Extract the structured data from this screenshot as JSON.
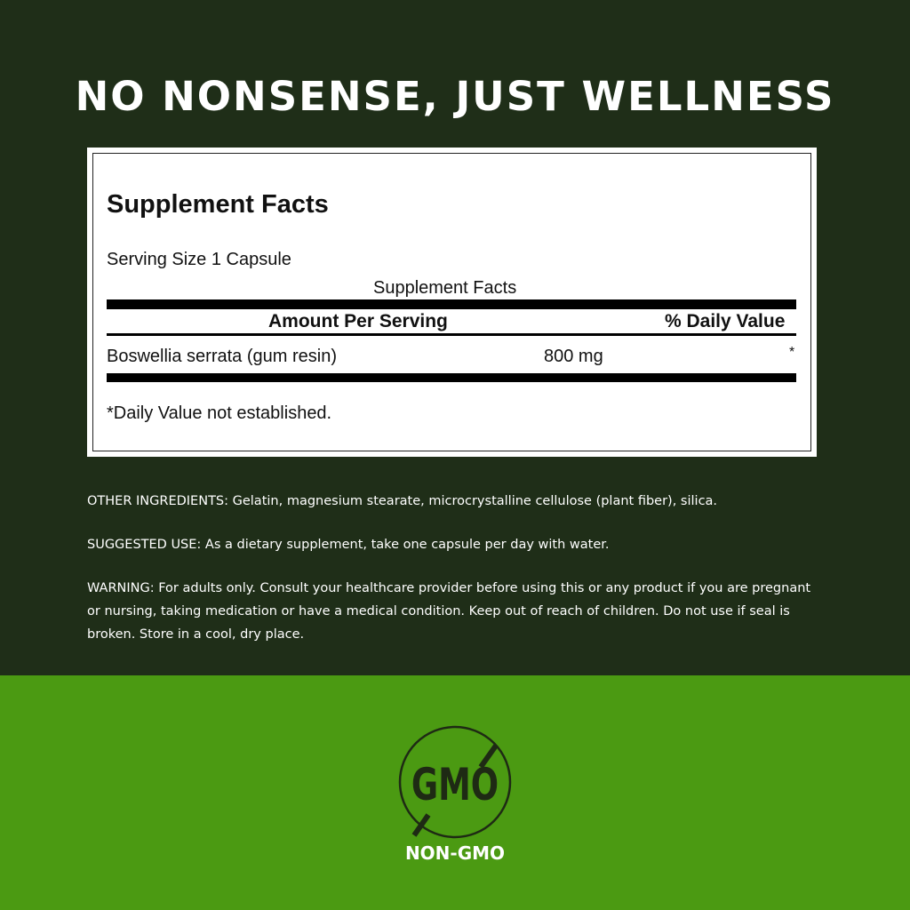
{
  "headline": "NO NONSENSE, JUST WELLNESS",
  "supplement_facts": {
    "title": "Supplement Facts",
    "serving_size": "Serving Size 1 Capsule",
    "subtitle": "Supplement Facts",
    "header_amount": "Amount Per Serving",
    "header_daily_value": "% Daily Value",
    "rows": [
      {
        "ingredient": "Boswellia serrata (gum resin)",
        "amount": "800 mg",
        "daily_value": "*"
      }
    ],
    "footnote": "*Daily Value not established."
  },
  "other_ingredients": "OTHER INGREDIENTS: Gelatin, magnesium stearate, microcrystalline cellulose (plant fiber), silica.",
  "suggested_use": "SUGGESTED USE: As a dietary supplement, take one capsule per day with water.",
  "warning": "WARNING: For adults only. Consult your healthcare provider before using this or any product if you are pregnant or nursing, taking medication or have a medical condition. Keep out of reach of children. Do not use if seal is broken. Store in a cool, dry place.",
  "badge": {
    "icon": "no-gmo-icon",
    "icon_text": "GMO",
    "label": "NON-GMO"
  },
  "colors": {
    "dark_green": "#1f2e18",
    "bright_green": "#4b9a12",
    "icon_dark": "#1e2a14"
  }
}
